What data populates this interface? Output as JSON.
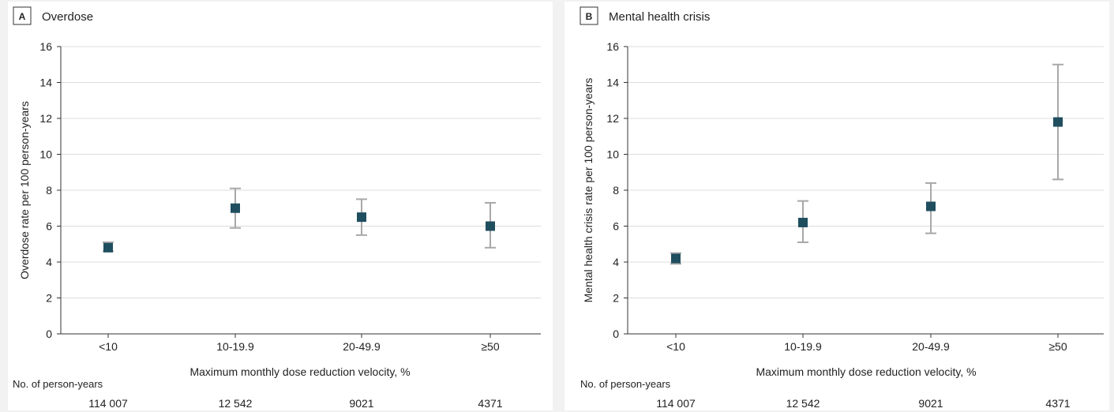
{
  "chart_data": [
    {
      "panel": "A",
      "title": "Overdose",
      "type": "scatter",
      "categories": [
        "<10",
        "10-19.9",
        "20-49.9",
        "≥50"
      ],
      "values": [
        4.8,
        7.0,
        6.5,
        6.0
      ],
      "ci_lower": [
        4.6,
        5.9,
        5.5,
        4.8
      ],
      "ci_upper": [
        5.1,
        8.1,
        7.5,
        7.3
      ],
      "ylabel": "Overdose rate per 100 person-years",
      "xlabel": "Maximum monthly dose reduction velocity, %",
      "ylim": [
        0,
        16
      ],
      "yticks": [
        0,
        2,
        4,
        6,
        8,
        10,
        12,
        14,
        16
      ],
      "grid": true,
      "person_years_label": "No. of person-years",
      "person_years": [
        "114 007",
        "12 542",
        "9021",
        "4371"
      ]
    },
    {
      "panel": "B",
      "title": "Mental health crisis",
      "type": "scatter",
      "categories": [
        "<10",
        "10-19.9",
        "20-49.9",
        "≥50"
      ],
      "values": [
        4.2,
        6.2,
        7.1,
        11.8
      ],
      "ci_lower": [
        3.9,
        5.1,
        5.6,
        8.6
      ],
      "ci_upper": [
        4.5,
        7.4,
        8.4,
        15.0
      ],
      "ylabel": "Mental health crisis rate per 100 person-years",
      "xlabel": "Maximum monthly dose reduction velocity, %",
      "ylim": [
        0,
        16
      ],
      "yticks": [
        0,
        2,
        4,
        6,
        8,
        10,
        12,
        14,
        16
      ],
      "grid": true,
      "person_years_label": "No. of person-years",
      "person_years": [
        "114 007",
        "12 542",
        "9021",
        "4371"
      ]
    }
  ],
  "colors": {
    "marker": "#1f4e5f",
    "errorbar": "#a8a8a8",
    "grid": "#dcdcdc",
    "axis": "#333333",
    "panel_bg": "#ffffff",
    "page_bg": "#f2f2f2"
  }
}
